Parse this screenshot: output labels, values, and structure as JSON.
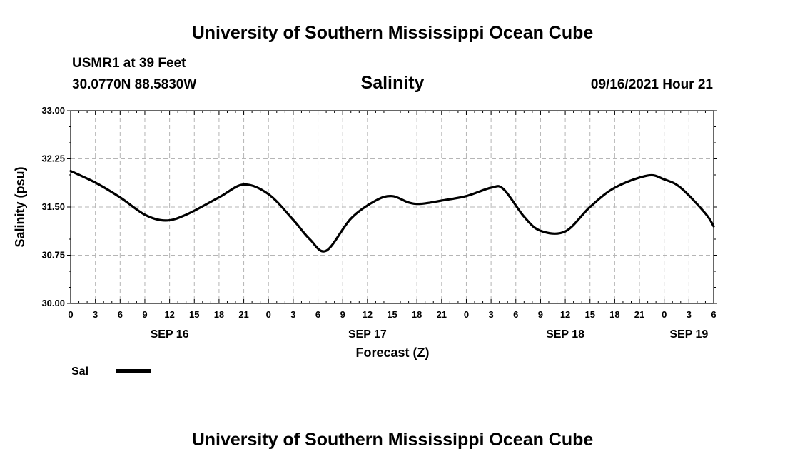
{
  "chart_data": {
    "type": "line",
    "title": "University of Southern Mississippi Ocean Cube",
    "footer_title": "University of Southern Mississippi Ocean Cube",
    "station": "USMR1 at 39 Feet",
    "location": "30.0770N  88.5830W",
    "subtitle": "Salinity",
    "issued": "09/16/2021 Hour 21",
    "ylabel": "Salinity (psu)",
    "xlabel": "Forecast (Z)",
    "ylim": [
      30.0,
      33.0
    ],
    "yticks": [
      "33.00",
      "32.25",
      "31.50",
      "30.75",
      "30.00"
    ],
    "ytick_values": [
      33.0,
      32.25,
      31.5,
      30.75,
      30.0
    ],
    "xlim_hours": [
      0,
      78
    ],
    "xtick_hours": [
      0,
      3,
      6,
      9,
      12,
      15,
      18,
      21,
      24,
      27,
      30,
      33,
      36,
      39,
      42,
      45,
      48,
      51,
      54,
      57,
      60,
      63,
      66,
      69,
      72,
      75,
      78
    ],
    "xtick_labels": [
      "0",
      "3",
      "6",
      "9",
      "12",
      "15",
      "18",
      "21",
      "0",
      "3",
      "6",
      "9",
      "12",
      "15",
      "18",
      "21",
      "0",
      "3",
      "6",
      "9",
      "12",
      "15",
      "18",
      "21",
      "0",
      "3",
      "6"
    ],
    "date_labels": [
      {
        "hour": 12,
        "label": "SEP 16"
      },
      {
        "hour": 36,
        "label": "SEP 17"
      },
      {
        "hour": 60,
        "label": "SEP 18"
      },
      {
        "hour": 75,
        "label": "SEP 19"
      }
    ],
    "series": [
      {
        "name": "Sal",
        "color": "#000000",
        "x": [
          0,
          3,
          6,
          9,
          11.5,
          14,
          18,
          21,
          24,
          27,
          29,
          31,
          34,
          37,
          39,
          41,
          42.5,
          45,
          48,
          51,
          52.5,
          55,
          57,
          60,
          63,
          66,
          70,
          72,
          74,
          77,
          78
        ],
        "y": [
          32.06,
          31.88,
          31.65,
          31.38,
          31.29,
          31.38,
          31.65,
          31.85,
          31.7,
          31.3,
          31.0,
          30.82,
          31.32,
          31.6,
          31.67,
          31.57,
          31.55,
          31.6,
          31.67,
          31.8,
          31.78,
          31.35,
          31.13,
          31.12,
          31.5,
          31.8,
          31.99,
          31.93,
          31.8,
          31.4,
          31.2
        ]
      }
    ]
  }
}
